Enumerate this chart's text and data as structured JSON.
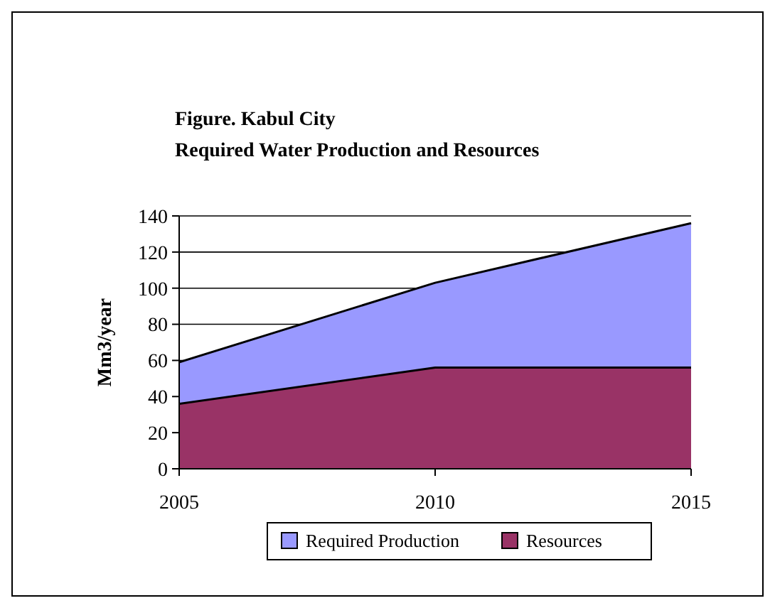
{
  "chart_data": {
    "type": "area",
    "title": "Figure. Kabul City",
    "subtitle": "Required Water Production and Resources",
    "ylabel": "Mm3/year",
    "x": [
      2005,
      2010,
      2015
    ],
    "xlim": [
      2005,
      2015
    ],
    "xticks": [
      2005,
      2010,
      2015
    ],
    "ylim": [
      0,
      140
    ],
    "yticks": [
      0,
      20,
      40,
      60,
      80,
      100,
      120,
      140
    ],
    "grid": "y",
    "legend": "bottom",
    "series": [
      {
        "name": "Required Production",
        "color": "#9999ff",
        "values": [
          59,
          103,
          136
        ]
      },
      {
        "name": "Resources",
        "color": "#993366",
        "values": [
          36,
          56,
          56
        ]
      }
    ]
  }
}
